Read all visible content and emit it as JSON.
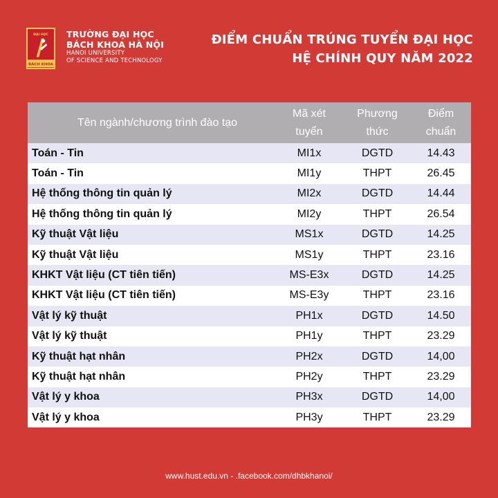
{
  "school": {
    "logo_top_text": "ĐẠI HỌC",
    "logo_bottom_text": "BÁCH KHOA",
    "name_line1": "TRƯỜNG ĐẠI HỌC",
    "name_line2": "BÁCH KHOA HÀ NỘI",
    "en_line1": "HANOI UNIVERSITY",
    "en_line2": "OF SCIENCE AND TECHNOLOGY"
  },
  "headline": {
    "line1": "ĐIỂM CHUẨN TRÚNG TUYỂN ĐẠI HỌC",
    "line2": "HỆ CHÍNH QUY NĂM 2022"
  },
  "table": {
    "headers": {
      "program": "Tên ngành/chương trình đào tạo",
      "code_l1": "Mã xét",
      "code_l2": "tuyển",
      "method_l1": "Phương",
      "method_l2": "thức",
      "score_l1": "Điểm",
      "score_l2": "chuẩn"
    },
    "rows": [
      {
        "program": "Toán - Tin",
        "code": "MI1x",
        "method": "DGTD",
        "score": "14.43"
      },
      {
        "program": "Toán - Tin",
        "code": "MI1y",
        "method": "THPT",
        "score": "26.45"
      },
      {
        "program": "Hệ thống thông tin quản lý",
        "code": "MI2x",
        "method": "DGTD",
        "score": "14.44"
      },
      {
        "program": "Hệ thống thông tin quản lý",
        "code": "MI2y",
        "method": "THPT",
        "score": "26.54"
      },
      {
        "program": "Kỹ thuật Vật liệu",
        "code": "MS1x",
        "method": "DGTD",
        "score": "14.25"
      },
      {
        "program": "Kỹ thuật Vật liệu",
        "code": "MS1y",
        "method": "THPT",
        "score": "23.16"
      },
      {
        "program": "KHKT Vật liệu (CT tiên tiến)",
        "code": "MS-E3x",
        "method": "DGTD",
        "score": "14.25"
      },
      {
        "program": "KHKT Vật liệu (CT tiên tiến)",
        "code": "MS-E3y",
        "method": "THPT",
        "score": "23.16"
      },
      {
        "program": "Vật lý kỹ thuật",
        "code": "PH1x",
        "method": "DGTD",
        "score": "14.50"
      },
      {
        "program": "Vật lý kỹ thuật",
        "code": "PH1y",
        "method": "THPT",
        "score": "23.29"
      },
      {
        "program": "Kỹ thuật hạt nhân",
        "code": "PH2x",
        "method": "DGTD",
        "score": "14,00"
      },
      {
        "program": "Kỹ thuật hạt nhân",
        "code": "PH2y",
        "method": "THPT",
        "score": "23.29"
      },
      {
        "program": "Vật lý y khoa",
        "code": "PH3x",
        "method": "DGTD",
        "score": "14,00"
      },
      {
        "program": "Vật lý y khoa",
        "code": "PH3y",
        "method": "THPT",
        "score": "23.29"
      }
    ]
  },
  "footer": {
    "website": "www.hust.edu.vn",
    "separator": "- .facebook.com/dhbkhanoi/"
  },
  "colors": {
    "background": "#d23a35",
    "header_gray": "#b0aeb0",
    "stripe": "#e7e6f5",
    "logo_gold": "#f2c94c"
  }
}
